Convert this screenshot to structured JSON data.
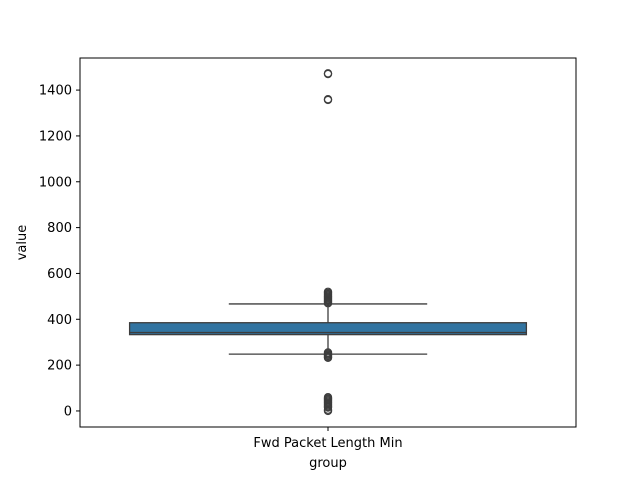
{
  "chart_data": {
    "type": "box",
    "title": "",
    "xlabel": "group",
    "ylabel": "value",
    "categories": [
      "Fwd Packet Length Min"
    ],
    "ylim": [
      -70,
      1540
    ],
    "yticks": [
      0,
      200,
      400,
      600,
      800,
      1000,
      1200,
      1400
    ],
    "grid": false,
    "box_color": "#3274a1",
    "series": [
      {
        "category": "Fwd Packet Length Min",
        "whisker_low": 248,
        "q1": 333,
        "median": 342,
        "q3": 385,
        "whisker_high": 467,
        "outliers": [
          1473,
          1470,
          1360,
          1357,
          520,
          515,
          510,
          505,
          500,
          495,
          490,
          485,
          480,
          475,
          470,
          255,
          250,
          245,
          240,
          235,
          232,
          60,
          55,
          50,
          45,
          40,
          35,
          30,
          25,
          20,
          15,
          5,
          0
        ]
      }
    ]
  }
}
